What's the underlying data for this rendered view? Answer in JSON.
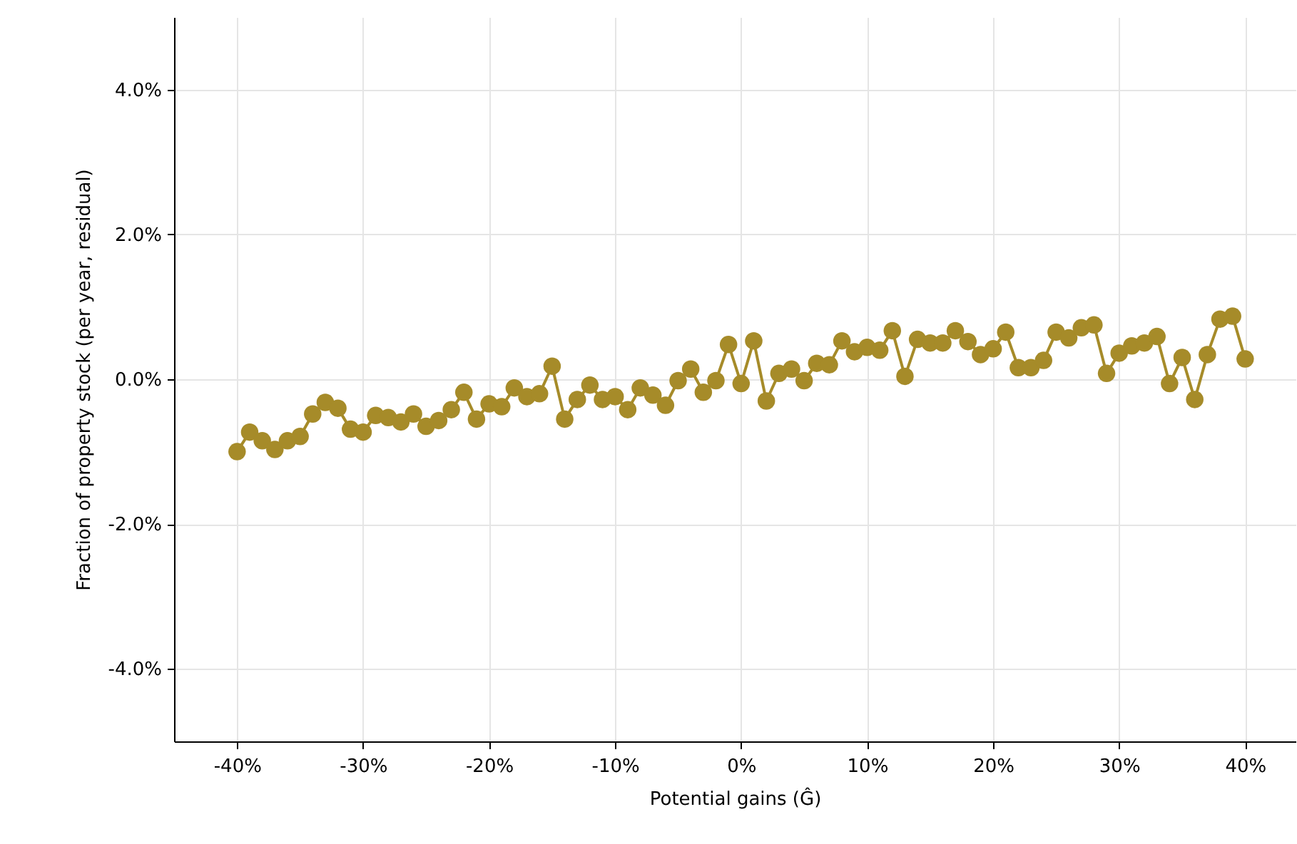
{
  "chart_data": {
    "type": "line",
    "xlabel": "Potential gains (Ĝ)",
    "ylabel": "Fraction of property stock (per year, residual)",
    "x": [
      -40,
      -39,
      -38,
      -37,
      -36,
      -35,
      -34,
      -33,
      -32,
      -31,
      -30,
      -29,
      -28,
      -27,
      -26,
      -25,
      -24,
      -23,
      -22,
      -21,
      -20,
      -19,
      -18,
      -17,
      -16,
      -15,
      -14,
      -13,
      -12,
      -11,
      -10,
      -9,
      -8,
      -7,
      -6,
      -5,
      -4,
      -3,
      -2,
      -1,
      0,
      1,
      2,
      3,
      4,
      5,
      6,
      7,
      8,
      9,
      10,
      11,
      12,
      13,
      14,
      15,
      16,
      17,
      18,
      19,
      20,
      21,
      22,
      23,
      24,
      25,
      26,
      27,
      28,
      29,
      30,
      31,
      32,
      33,
      34,
      35,
      36,
      37,
      38,
      39,
      40
    ],
    "series": [
      {
        "color": "#a68b29",
        "values": [
          -1.0,
          -0.73,
          -0.85,
          -0.97,
          -0.85,
          -0.79,
          -0.48,
          -0.32,
          -0.4,
          -0.69,
          -0.73,
          -0.5,
          -0.53,
          -0.59,
          -0.48,
          -0.65,
          -0.57,
          -0.42,
          -0.18,
          -0.55,
          -0.34,
          -0.38,
          -0.12,
          -0.24,
          -0.2,
          0.18,
          -0.55,
          -0.28,
          -0.08,
          -0.28,
          -0.24,
          -0.42,
          -0.12,
          -0.22,
          -0.36,
          -0.02,
          0.14,
          -0.18,
          -0.02,
          0.48,
          -0.06,
          0.53,
          -0.3,
          0.08,
          0.14,
          -0.02,
          0.22,
          0.2,
          0.53,
          0.38,
          0.44,
          0.4,
          0.67,
          0.04,
          0.55,
          0.5,
          0.5,
          0.67,
          0.52,
          0.34,
          0.42,
          0.65,
          0.16,
          0.16,
          0.26,
          0.65,
          0.57,
          0.71,
          0.75,
          0.08,
          0.36,
          0.46,
          0.5,
          0.59,
          -0.06,
          0.3,
          -0.28,
          0.34,
          0.83,
          0.87,
          0.28
        ]
      }
    ],
    "xlim": [
      -45,
      44
    ],
    "ylim": [
      -5,
      5
    ],
    "xticks": [
      {
        "value": -40,
        "label": "-40%"
      },
      {
        "value": -30,
        "label": "-30%"
      },
      {
        "value": -20,
        "label": "-20%"
      },
      {
        "value": -10,
        "label": "-10%"
      },
      {
        "value": 0,
        "label": "0%"
      },
      {
        "value": 10,
        "label": "10%"
      },
      {
        "value": 20,
        "label": "20%"
      },
      {
        "value": 30,
        "label": "30%"
      },
      {
        "value": 40,
        "label": "40%"
      }
    ],
    "yticks": [
      {
        "value": -4,
        "label": "-4.0%"
      },
      {
        "value": -2,
        "label": "-2.0%"
      },
      {
        "value": 0,
        "label": "0.0%"
      },
      {
        "value": 2,
        "label": "2.0%"
      },
      {
        "value": 4,
        "label": "4.0%"
      }
    ],
    "grid": true,
    "marker": "circle",
    "line_style": "solid"
  }
}
